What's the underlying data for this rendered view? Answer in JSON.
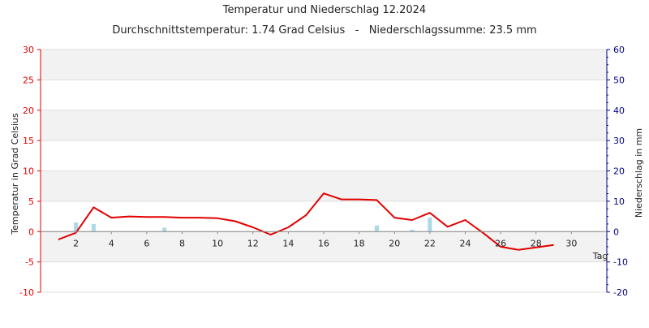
{
  "chart_data": {
    "type": "line",
    "title": "Temperatur und Niederschlag 12.2024",
    "subtitle": "Durchschnittstemperatur: 1.74 Grad Celsius   -   Niederschlagssumme: 23.5 mm",
    "xlabel": "Tag",
    "ylabel_left": "Temperatur in Grad Celsius",
    "ylabel_right": "Niederschlag in mm",
    "xlim": [
      0,
      32
    ],
    "ylim_left": [
      -10,
      30
    ],
    "ylim_right": [
      -20,
      60
    ],
    "x_ticks": [
      2,
      4,
      6,
      8,
      10,
      12,
      14,
      16,
      18,
      20,
      22,
      24,
      26,
      28,
      30
    ],
    "y_ticks_left": [
      -10,
      -5,
      0,
      5,
      10,
      15,
      20,
      25,
      30
    ],
    "y_ticks_right": [
      -20,
      -10,
      0,
      10,
      20,
      30,
      40,
      50,
      60
    ],
    "grid": true,
    "colors": {
      "temperature": "#e30000",
      "precipitation": "#add8e6",
      "left_axis": "#e30000",
      "right_axis": "#00008b",
      "band": "#f2f2f2",
      "grid": "#dddddd"
    },
    "series": [
      {
        "type": "line",
        "axis": "left",
        "x": [
          1,
          2,
          3,
          4,
          5,
          6,
          7,
          8,
          9,
          10,
          11,
          12,
          13,
          14,
          15,
          16,
          17,
          18,
          19,
          20,
          21,
          22,
          23,
          24,
          25,
          26,
          27,
          28,
          29
        ],
        "values": [
          -1.3,
          -0.2,
          4.0,
          2.3,
          2.5,
          2.4,
          2.4,
          2.3,
          2.3,
          2.2,
          1.7,
          0.7,
          -0.5,
          0.7,
          2.7,
          6.3,
          5.3,
          5.3,
          5.2,
          2.3,
          1.9,
          3.1,
          0.8,
          1.9,
          -0.2,
          -2.5,
          -3.0,
          -2.6,
          -2.2
        ]
      },
      {
        "type": "bar",
        "axis": "right",
        "x": [
          2,
          3,
          7,
          19,
          21,
          22
        ],
        "values": [
          3.0,
          2.5,
          1.3,
          2.0,
          0.6,
          4.6
        ]
      }
    ]
  }
}
